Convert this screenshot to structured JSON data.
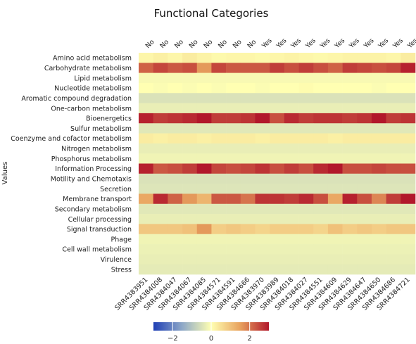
{
  "chart_data": {
    "type": "heatmap",
    "title": "Functional Categories",
    "ylabel": "Values",
    "rows": [
      "Amino acid metabolism",
      "Carbohydrate metabolism",
      "Lipid metabolism",
      "Nucleotide metabolism",
      "Aromatic compound degradation",
      "One-carbon metabolism",
      "Bioenergetics",
      "Sulfur metabolism",
      "Coenzyme and cofactor metabolism",
      "Nitrogen metabolism",
      "Phosphorus metabolism",
      "Information Processing",
      "Motility and Chemotaxis",
      "Secretion",
      "Membrane transport",
      "Secondary metabolism",
      "Cellular processing",
      "Signal transduction",
      "Phage",
      "Cell wall metabolism",
      "Virulence",
      "Stress"
    ],
    "columns": [
      "SRR4383951",
      "SRR4384008",
      "SRR4384047",
      "SRR4384067",
      "SRR4384085",
      "SRR4384571",
      "SRR4384591",
      "SRR4384666",
      "SRR4383970",
      "SRR4383989",
      "SRR4384018",
      "SRR4384027",
      "SRR4384551",
      "SRR4384609",
      "SRR4384629",
      "SRR4384647",
      "SRR4384650",
      "SRR4384686",
      "SRR4384721"
    ],
    "column_groups": [
      "No",
      "No",
      "No",
      "No",
      "No",
      "No",
      "No",
      "No",
      "Yes",
      "Yes",
      "Yes",
      "Yes",
      "Yes",
      "Yes",
      "Yes",
      "Yes",
      "Yes",
      "Yes",
      "Yes"
    ],
    "values": [
      [
        0.15,
        0.25,
        0.15,
        0.3,
        0.2,
        0.1,
        0.15,
        0.15,
        0.1,
        0.15,
        0.2,
        0.15,
        0.1,
        0.15,
        0.2,
        0.2,
        0.2,
        0.15,
        0.3
      ],
      [
        2.2,
        2.5,
        2.3,
        2.4,
        1.6,
        2.5,
        2.3,
        2.3,
        2.3,
        2.6,
        2.4,
        2.6,
        2.4,
        2.2,
        2.6,
        2.5,
        2.4,
        2.5,
        2.9
      ],
      [
        -0.1,
        -0.1,
        -0.1,
        -0.1,
        -0.1,
        -0.1,
        -0.1,
        -0.1,
        -0.1,
        -0.1,
        -0.1,
        -0.1,
        -0.1,
        -0.1,
        -0.1,
        -0.1,
        -0.1,
        -0.1,
        -0.1
      ],
      [
        0.0,
        -0.05,
        0.0,
        -0.05,
        0.0,
        -0.05,
        0.0,
        0.0,
        -0.05,
        0.0,
        0.0,
        0.05,
        0.0,
        0.0,
        0.0,
        0.0,
        -0.05,
        0.0,
        0.0
      ],
      [
        -0.5,
        -0.5,
        -0.5,
        -0.5,
        -0.5,
        -0.5,
        -0.5,
        -0.5,
        -0.5,
        -0.5,
        -0.5,
        -0.5,
        -0.5,
        -0.5,
        -0.5,
        -0.5,
        -0.5,
        -0.5,
        -0.5
      ],
      [
        -0.3,
        -0.3,
        -0.3,
        -0.3,
        -0.3,
        -0.3,
        -0.3,
        -0.3,
        -0.3,
        -0.3,
        -0.3,
        -0.3,
        -0.3,
        -0.3,
        -0.3,
        -0.3,
        -0.3,
        -0.3,
        -0.3
      ],
      [
        2.9,
        2.6,
        2.7,
        2.8,
        3.0,
        2.6,
        2.6,
        2.7,
        3.0,
        2.4,
        2.8,
        2.6,
        2.7,
        2.7,
        2.6,
        2.7,
        3.0,
        2.6,
        2.7
      ],
      [
        -0.4,
        -0.4,
        -0.4,
        -0.4,
        -0.4,
        -0.4,
        -0.4,
        -0.4,
        -0.4,
        -0.4,
        -0.4,
        -0.4,
        -0.4,
        -0.4,
        -0.4,
        -0.4,
        -0.4,
        -0.4,
        -0.4
      ],
      [
        0.3,
        0.25,
        0.3,
        0.3,
        0.25,
        0.3,
        0.3,
        0.3,
        0.25,
        0.3,
        0.3,
        0.3,
        0.3,
        0.25,
        0.3,
        0.3,
        0.3,
        0.3,
        0.3
      ],
      [
        -0.3,
        -0.3,
        -0.3,
        -0.3,
        -0.3,
        -0.3,
        -0.3,
        -0.3,
        -0.3,
        -0.3,
        -0.3,
        -0.3,
        -0.3,
        -0.3,
        -0.3,
        -0.3,
        -0.3,
        -0.3,
        -0.3
      ],
      [
        -0.2,
        -0.2,
        -0.2,
        -0.2,
        -0.2,
        -0.2,
        -0.2,
        -0.2,
        -0.2,
        -0.2,
        -0.2,
        -0.2,
        -0.2,
        -0.2,
        -0.2,
        -0.2,
        -0.2,
        -0.2,
        -0.2
      ],
      [
        2.9,
        2.3,
        2.4,
        2.6,
        3.2,
        2.5,
        2.4,
        2.5,
        2.7,
        2.4,
        2.6,
        2.4,
        2.8,
        3.1,
        2.4,
        2.4,
        2.5,
        2.4,
        2.4
      ],
      [
        -0.5,
        -0.5,
        -0.5,
        -0.5,
        -0.5,
        -0.5,
        -0.5,
        -0.5,
        -0.5,
        -0.5,
        -0.5,
        -0.5,
        -0.5,
        -0.5,
        -0.5,
        -0.5,
        -0.5,
        -0.5,
        -0.5
      ],
      [
        -0.45,
        -0.45,
        -0.45,
        -0.45,
        -0.45,
        -0.45,
        -0.45,
        -0.45,
        -0.45,
        -0.45,
        -0.45,
        -0.45,
        -0.45,
        -0.45,
        -0.45,
        -0.45,
        -0.45,
        -0.45,
        -0.45
      ],
      [
        1.4,
        2.8,
        2.2,
        1.6,
        1.2,
        2.3,
        2.3,
        2.0,
        2.7,
        2.7,
        2.6,
        2.8,
        2.4,
        1.4,
        2.9,
        2.4,
        1.8,
        2.6,
        3.0
      ],
      [
        -0.4,
        -0.4,
        -0.4,
        -0.4,
        -0.4,
        -0.4,
        -0.4,
        -0.4,
        -0.4,
        -0.4,
        -0.4,
        -0.4,
        -0.4,
        -0.4,
        -0.4,
        -0.4,
        -0.4,
        -0.4,
        -0.4
      ],
      [
        -0.3,
        -0.3,
        -0.3,
        -0.3,
        -0.3,
        -0.3,
        -0.3,
        -0.3,
        -0.3,
        -0.3,
        -0.3,
        -0.3,
        -0.3,
        -0.3,
        -0.3,
        -0.3,
        -0.3,
        -0.3,
        -0.3
      ],
      [
        0.9,
        0.9,
        0.9,
        1.0,
        1.6,
        0.8,
        0.9,
        0.8,
        0.7,
        0.8,
        0.8,
        0.8,
        0.7,
        1.0,
        0.8,
        0.9,
        0.8,
        0.9,
        0.9
      ],
      [
        -0.2,
        -0.2,
        -0.2,
        -0.2,
        -0.2,
        -0.2,
        -0.2,
        -0.2,
        -0.2,
        -0.2,
        -0.2,
        -0.2,
        -0.2,
        -0.2,
        -0.2,
        -0.2,
        -0.2,
        -0.2,
        -0.2
      ],
      [
        -0.25,
        -0.25,
        -0.25,
        -0.25,
        -0.25,
        -0.25,
        -0.25,
        -0.25,
        -0.25,
        -0.25,
        -0.25,
        -0.25,
        -0.25,
        -0.25,
        -0.25,
        -0.25,
        -0.25,
        -0.25,
        -0.25
      ],
      [
        -0.3,
        -0.3,
        -0.3,
        -0.3,
        -0.3,
        -0.3,
        -0.3,
        -0.3,
        -0.3,
        -0.3,
        -0.3,
        -0.3,
        -0.3,
        -0.3,
        -0.3,
        -0.3,
        -0.3,
        -0.3,
        -0.3
      ],
      [
        -0.35,
        -0.35,
        -0.35,
        -0.35,
        -0.35,
        -0.35,
        -0.35,
        -0.35,
        -0.35,
        -0.35,
        -0.35,
        -0.35,
        -0.35,
        -0.35,
        -0.35,
        -0.35,
        -0.35,
        -0.35,
        -0.35
      ]
    ],
    "colorscale": {
      "range": [
        -3,
        3
      ],
      "colors": [
        "#1f3fb5",
        "#8fa9c8",
        "#ffffb2",
        "#e8a25e",
        "#b2182b"
      ],
      "ticks": [
        -2,
        0,
        2
      ],
      "tick_labels": [
        "−2",
        "0",
        "2"
      ]
    },
    "legend": "bottom"
  }
}
